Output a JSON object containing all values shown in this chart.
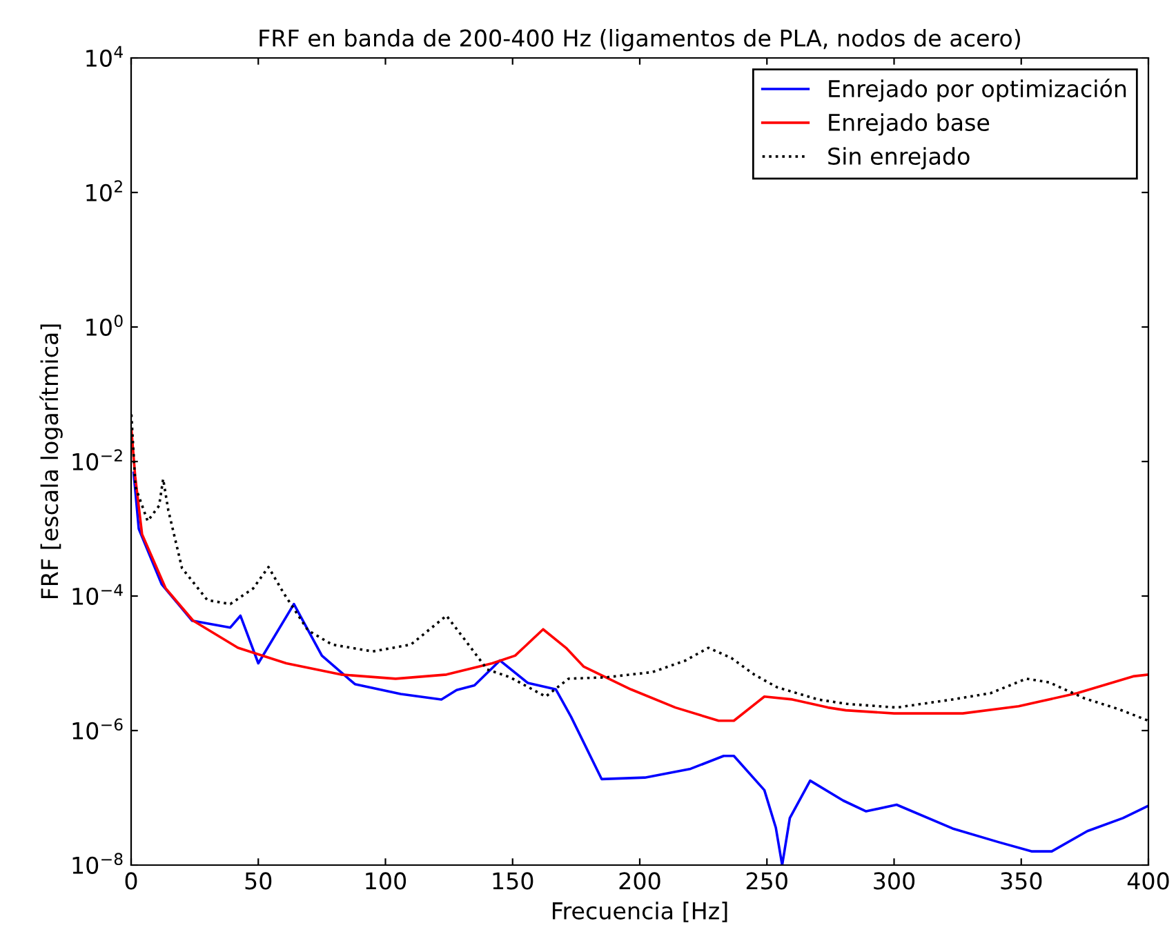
{
  "chart_data": {
    "type": "line",
    "title": "FRF en banda de 200-400 Hz (ligamentos de PLA, nodos de acero)",
    "xlabel": "Frecuencia [Hz]",
    "ylabel": "FRF [escala logarítmica]",
    "log": "y",
    "grid": false,
    "legend": "top right",
    "xlim": [
      0,
      400
    ],
    "xticks": [
      0,
      50,
      100,
      150,
      200,
      250,
      300,
      350,
      400
    ],
    "ylim": [
      1e-08,
      10000
    ],
    "yticks": [
      {
        "value": 1e-08,
        "label": "10$^{−8}$"
      },
      {
        "value": 1e-06,
        "label": "10$^{−6}$"
      },
      {
        "value": 0.0001,
        "label": "10$^{−4}$"
      },
      {
        "value": 0.01,
        "label": "10$^{−2}$"
      },
      {
        "value": 1,
        "label": "10$^{0}$"
      },
      {
        "value": 100,
        "label": "10$^{2}$"
      },
      {
        "value": 10000,
        "label": "10$^{4}$"
      }
    ],
    "series": [
      {
        "name": "Enrejado por optimización",
        "color": "#0000ff",
        "line_style": "solid",
        "x": [
          1,
          3,
          12,
          24,
          39,
          43,
          50,
          64,
          75,
          88,
          106,
          122,
          128,
          135,
          145,
          156,
          167,
          173,
          185,
          202,
          220,
          233,
          237,
          249,
          253.5,
          256,
          259,
          267,
          280,
          289,
          301,
          323,
          341,
          354,
          362,
          376,
          390,
          400
        ],
        "values": [
          0.0068,
          0.001,
          0.00015,
          4.3e-05,
          3.4e-05,
          5.1e-05,
          1e-05,
          7.6e-05,
          1.3e-05,
          4.9e-06,
          3.5e-06,
          2.9e-06,
          4e-06,
          4.7e-06,
          1.1e-05,
          5.1e-06,
          4.1e-06,
          1.6e-06,
          1.9e-07,
          2e-07,
          2.7e-07,
          4.2e-07,
          4.2e-07,
          1.3e-07,
          3.6e-08,
          1e-08,
          5e-08,
          1.8e-07,
          9.1e-08,
          6.3e-08,
          7.9e-08,
          3.5e-08,
          2.2e-08,
          1.6e-08,
          1.6e-08,
          3.2e-08,
          5e-08,
          7.6e-08
        ]
      },
      {
        "name": "Enrejado base",
        "color": "#ff0000",
        "line_style": "solid",
        "x": [
          0.1,
          1.6,
          4.3,
          13.6,
          24.4,
          42,
          61,
          82.5,
          104,
          124,
          142,
          151,
          162,
          171,
          178,
          196.5,
          214,
          231,
          237,
          249,
          260,
          274,
          281,
          300,
          327,
          349,
          372,
          394,
          400
        ],
        "values": [
          0.03,
          0.006,
          0.00083,
          0.00013,
          4.3e-05,
          1.7e-05,
          1e-05,
          6.8e-06,
          5.9e-06,
          6.8e-06,
          1e-05,
          1.3e-05,
          3.2e-05,
          1.7e-05,
          8.9e-06,
          4.1e-06,
          2.2e-06,
          1.4e-06,
          1.4e-06,
          3.2e-06,
          2.9e-06,
          2.2e-06,
          2e-06,
          1.8e-06,
          1.8e-06,
          2.3e-06,
          3.6e-06,
          6.4e-06,
          6.8e-06
        ]
      },
      {
        "name": "Sin enrejado",
        "color": "#000000",
        "line_style": "dotted",
        "x": [
          0.1,
          1.7,
          6.5,
          11,
          12.6,
          14.6,
          20,
          30,
          39,
          48,
          54,
          60,
          69.5,
          79,
          95,
          110,
          124,
          131,
          140,
          149,
          163,
          172,
          187,
          205,
          218,
          227,
          236,
          245,
          254,
          270,
          281,
          301,
          323,
          338,
          352,
          361,
          375,
          388,
          398,
          400
        ],
        "values": [
          0.05,
          0.0042,
          0.0013,
          0.0022,
          0.0055,
          0.0019,
          0.00026,
          8.7e-05,
          7.6e-05,
          0.00013,
          0.00027,
          0.00011,
          3.1e-05,
          1.9e-05,
          1.5e-05,
          1.9e-05,
          5.1e-05,
          2.3e-05,
          8.1e-06,
          6.2e-06,
          3.2e-06,
          5.9e-06,
          6.2e-06,
          7.4e-06,
          1.1e-05,
          1.7e-05,
          1.2e-05,
          6.8e-06,
          4.4e-06,
          2.9e-06,
          2.5e-06,
          2.2e-06,
          2.9e-06,
          3.6e-06,
          5.9e-06,
          5.2e-06,
          3e-06,
          2.1e-06,
          1.5e-06,
          1.4e-06
        ]
      }
    ]
  }
}
